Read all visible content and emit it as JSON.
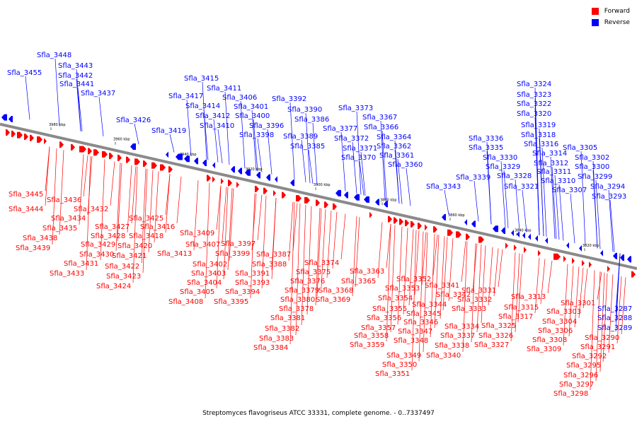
{
  "legend": {
    "forward_label": "Forward",
    "reverse_label": "Reverse",
    "forward_color": "#ff0000",
    "reverse_color": "#0000ff"
  },
  "caption": "Streptomyces flavogriseus ATCC 33331, complete genome. - 0..7337497",
  "axis_ticks": [
    "3980 kbp",
    "3960 kbp",
    "3940 kbp",
    "3920 kbp",
    "3900 kbp",
    "3880 kbp",
    "3860 kbp",
    "3840 kbp",
    "3820 kbp"
  ],
  "reverse_genes": [
    "Sfla_3455",
    "Sfla_3448",
    "Sfla_3443",
    "Sfla_3442",
    "Sfla_3441",
    "Sfla_3437",
    "Sfla_3426",
    "Sfla_3419",
    "Sfla_3417",
    "Sfla_3415",
    "Sfla_3414",
    "Sfla_3412",
    "Sfla_3411",
    "Sfla_3410",
    "Sfla_3406",
    "Sfla_3401",
    "Sfla_3400",
    "Sfla_3398",
    "Sfla_3396",
    "Sfla_3392",
    "Sfla_3390",
    "Sfla_3389",
    "Sfla_3386",
    "Sfla_3385",
    "Sfla_3377",
    "Sfla_3373",
    "Sfla_3372",
    "Sfla_3371",
    "Sfla_3370",
    "Sfla_3367",
    "Sfla_3366",
    "Sfla_3364",
    "Sfla_3362",
    "Sfla_3361",
    "Sfla_3360",
    "Sfla_3343",
    "Sfla_3339",
    "Sfla_3336",
    "Sfla_3335",
    "Sfla_3330",
    "Sfla_3329",
    "Sfla_3328",
    "Sfla_3324",
    "Sfla_3323",
    "Sfla_3322",
    "Sfla_3321",
    "Sfla_3320",
    "Sfla_3319",
    "Sfla_3318",
    "Sfla_3316",
    "Sfla_3314",
    "Sfla_3312",
    "Sfla_3311",
    "Sfla_3310",
    "Sfla_3307",
    "Sfla_3305",
    "Sfla_3302",
    "Sfla_3300",
    "Sfla_3299",
    "Sfla_3294",
    "Sfla_3293",
    "Sfla_3287",
    "Sfla_3288",
    "Sfla_3289"
  ],
  "forward_genes": [
    "Sfla_3445",
    "Sfla_3444",
    "Sfla_3436",
    "Sfla_3432",
    "Sfla_3434",
    "Sfla_3435",
    "Sfla_3438",
    "Sfla_3439",
    "Sfla_3427",
    "Sfla_3428",
    "Sfla_3429",
    "Sfla_3430",
    "Sfla_3431",
    "Sfla_3433",
    "Sfla_3425",
    "Sfla_3418",
    "Sfla_3416",
    "Sfla_3420",
    "Sfla_3421",
    "Sfla_3422",
    "Sfla_3423",
    "Sfla_3424",
    "Sfla_3409",
    "Sfla_3413",
    "Sfla_3407",
    "Sfla_3402",
    "Sfla_3403",
    "Sfla_3404",
    "Sfla_3405",
    "Sfla_3408",
    "Sfla_3397",
    "Sfla_3399",
    "Sfla_3391",
    "Sfla_3393",
    "Sfla_3394",
    "Sfla_3395",
    "Sfla_3387",
    "Sfla_3388",
    "Sfla_3374",
    "Sfla_3375",
    "Sfla_3376",
    "Sfla_3379",
    "Sfla_3380",
    "Sfla_3378",
    "Sfla_3381",
    "Sfla_3382",
    "Sfla_3383",
    "Sfla_3384",
    "Sfla_3368",
    "Sfla_3369",
    "Sfla_3363",
    "Sfla_3365",
    "Sfla_3352",
    "Sfla_3353",
    "Sfla_3354",
    "Sfla_3355",
    "Sfla_3356",
    "Sfla_3357",
    "Sfla_3358",
    "Sfla_3359",
    "Sfla_3349",
    "Sfla_3350",
    "Sfla_3351",
    "Sfla_3341",
    "Sfla_3342",
    "Sfla_3344",
    "Sfla_3345",
    "Sfla_3346",
    "Sfla_3347",
    "Sfla_3348",
    "Sfla_3331",
    "Sfla_3332",
    "Sfla_3333",
    "Sfla_3334",
    "Sfla_3337",
    "Sfla_3338",
    "Sfla_3340",
    "Sfla_3325",
    "Sfla_3326",
    "Sfla_3327",
    "Sfla_3313",
    "Sfla_3315",
    "Sfla_3317",
    "Sfla_3301",
    "Sfla_3303",
    "Sfla_3304",
    "Sfla_3306",
    "Sfla_3308",
    "Sfla_3309",
    "Sfla_3290",
    "Sfla_3291",
    "Sfla_3292",
    "Sfla_3295",
    "Sfla_3296",
    "Sfla_3297",
    "Sfla_3298"
  ]
}
